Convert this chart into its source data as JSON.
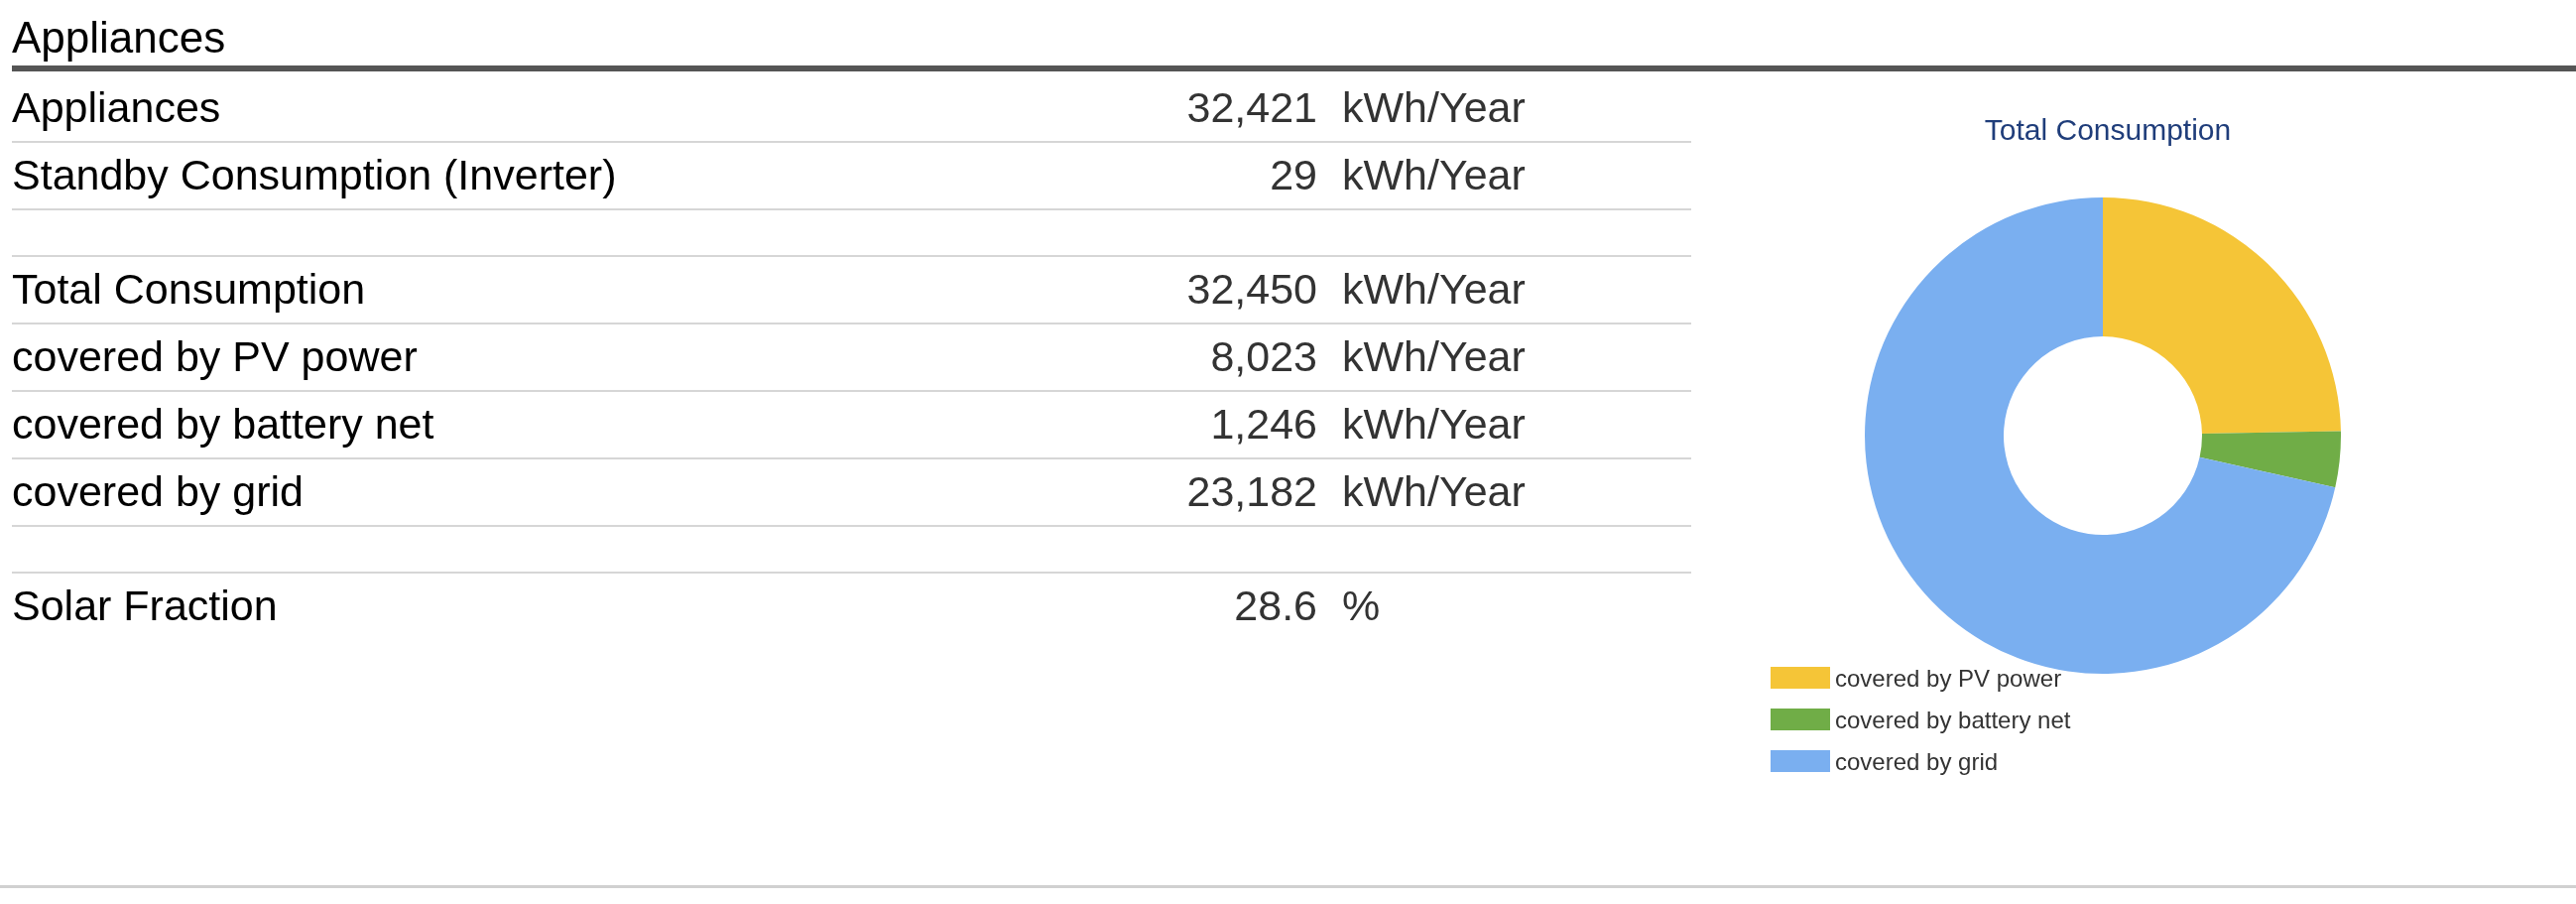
{
  "chart_data": [
    {
      "type": "other",
      "title": "Appliances",
      "categories": [
        "Appliances",
        "Standby Consumption (Inverter)",
        null,
        "Total Consumption",
        "covered by PV power",
        "covered by battery net",
        "covered by grid",
        null,
        "Solar Fraction"
      ],
      "value_labels": [
        "32,421 kWh/Year",
        "29 kWh/Year",
        null,
        "32,450 kWh/Year",
        "8,023 kWh/Year",
        "1,246 kWh/Year",
        "23,182 kWh/Year",
        null,
        "28.6 %"
      ]
    },
    {
      "type": "donut",
      "title": "Total Consumption",
      "categories": [
        "covered by PV power",
        "covered by battery net",
        "covered by grid"
      ],
      "values": [
        24.7,
        3.8,
        71.5
      ],
      "colors": [
        "#f5c537",
        "#70ad47",
        "#7aaff0"
      ],
      "legend": "bottom left"
    }
  ]
}
